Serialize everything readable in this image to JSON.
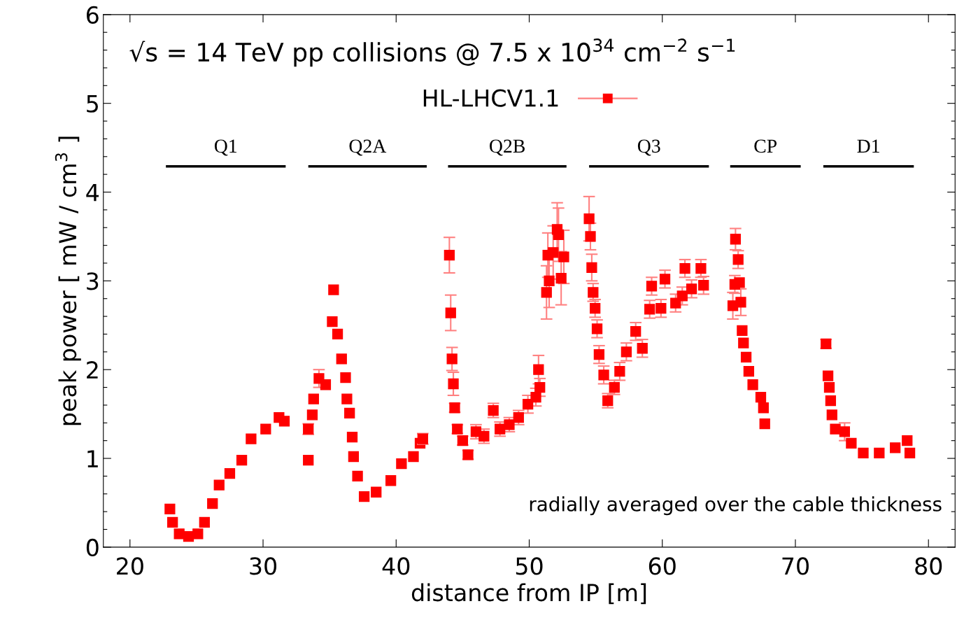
{
  "chart_data": {
    "type": "scatter",
    "xlabel": "distance from IP [m]",
    "ylabel": "peak power [ mW / cm$^{3}$ ]",
    "annotations": [
      "√s = 14 TeV pp collisions @ 7.5 x 10$^{34}$ cm$^{−2}$ s$^{−1}$",
      "radially averaged over the cable thickness"
    ],
    "xlim": [
      18,
      82
    ],
    "xticks": [
      20,
      30,
      40,
      50,
      60,
      70,
      80
    ],
    "ylim": [
      0,
      6
    ],
    "yticks": [
      0,
      {
        "value": 0.2,
        "label": null
      },
      {
        "value": 0.4,
        "label": null
      },
      {
        "value": 0.6,
        "label": null
      },
      {
        "value": 0.8,
        "label": null
      },
      1,
      {
        "value": 1.2,
        "label": null
      },
      {
        "value": 1.4,
        "label": null
      },
      {
        "value": 1.6,
        "label": null
      },
      {
        "value": 1.8,
        "label": null
      },
      2,
      {
        "value": 2.2,
        "label": null
      },
      {
        "value": 2.4,
        "label": null
      },
      {
        "value": 2.6,
        "label": null
      },
      {
        "value": 2.8,
        "label": null
      },
      3,
      {
        "value": 3.2,
        "label": null
      },
      {
        "value": 3.4,
        "label": null
      },
      {
        "value": 3.6,
        "label": null
      },
      {
        "value": 3.8,
        "label": null
      },
      4,
      {
        "value": 4.2,
        "label": null
      },
      {
        "value": 4.4,
        "label": null
      },
      {
        "value": 4.6,
        "label": null
      },
      {
        "value": 4.8,
        "label": null
      },
      5,
      {
        "value": 5.2,
        "label": null
      },
      {
        "value": 5.4,
        "label": null
      },
      {
        "value": 5.6,
        "label": null
      },
      {
        "value": 5.8,
        "label": null
      },
      6
    ],
    "grid": false,
    "legend": "top",
    "marker": "square",
    "series": [
      {
        "type": "line",
        "marker": "none",
        "name": "Q1",
        "color": "#000000",
        "x": [
          22.7,
          31.7
        ],
        "values": [
          4.29,
          4.29
        ]
      },
      {
        "type": "line",
        "marker": "none",
        "name": "Q2A",
        "color": "#000000",
        "x": [
          33.4,
          42.3
        ],
        "values": [
          4.29,
          4.29
        ]
      },
      {
        "type": "line",
        "marker": "none",
        "name": "Q2B",
        "color": "#000000",
        "x": [
          43.9,
          52.8
        ],
        "values": [
          4.29,
          4.29
        ]
      },
      {
        "type": "line",
        "marker": "none",
        "name": "Q3",
        "color": "#000000",
        "x": [
          54.5,
          63.5
        ],
        "values": [
          4.29,
          4.29
        ]
      },
      {
        "type": "line",
        "marker": "none",
        "name": "CP",
        "color": "#000000",
        "x": [
          65.1,
          70.4
        ],
        "values": [
          4.29,
          4.29
        ]
      },
      {
        "type": "line",
        "marker": "none",
        "name": "D1",
        "color": "#000000",
        "x": [
          72.1,
          78.9
        ],
        "values": [
          4.29,
          4.29
        ]
      },
      {
        "name": "HL-LHCV1.1",
        "color": "#ff0000",
        "x": [
          23.0,
          23.2,
          23.7,
          24.4,
          25.1,
          25.6,
          26.2,
          26.7,
          27.5,
          28.4,
          29.1,
          30.2,
          31.2,
          31.6,
          33.4,
          33.4,
          33.7,
          33.8,
          34.2,
          34.7,
          35.3,
          35.2,
          35.6,
          35.9,
          36.2,
          36.3,
          36.5,
          36.7,
          36.8,
          37.1,
          37.6,
          38.5,
          39.6,
          40.4,
          41.3,
          41.8,
          42.0,
          44.0,
          44.1,
          44.2,
          44.3,
          44.4,
          44.6,
          45.0,
          45.4,
          46.0,
          46.6,
          47.3,
          47.8,
          48.5,
          49.2,
          49.9,
          50.5,
          50.8,
          50.7,
          51.3,
          51.4,
          51.5,
          51.8,
          52.1,
          52.2,
          52.4,
          52.6,
          54.5,
          54.6,
          54.7,
          54.8,
          54.95,
          55.1,
          55.25,
          55.6,
          55.9,
          56.4,
          56.8,
          57.3,
          58.0,
          58.5,
          59.05,
          59.2,
          59.9,
          60.2,
          61.0,
          61.5,
          61.7,
          62.2,
          62.9,
          63.1,
          65.5,
          65.7,
          65.45,
          65.8,
          65.3,
          65.9,
          66.0,
          66.1,
          66.3,
          66.5,
          66.8,
          67.4,
          67.6,
          67.7,
          72.3,
          72.45,
          72.55,
          72.65,
          72.75,
          73.0,
          73.7,
          74.2,
          75.1,
          76.3,
          77.5,
          78.4,
          78.6
        ],
        "values": [
          0.43,
          0.28,
          0.15,
          0.12,
          0.15,
          0.28,
          0.49,
          0.7,
          0.83,
          0.98,
          1.22,
          1.33,
          1.46,
          1.42,
          0.98,
          1.33,
          1.49,
          1.67,
          1.9,
          1.83,
          2.9,
          2.54,
          2.4,
          2.12,
          1.91,
          1.67,
          1.51,
          1.24,
          1.02,
          0.8,
          0.57,
          0.62,
          0.75,
          0.94,
          1.02,
          1.17,
          1.22,
          3.29,
          2.64,
          2.12,
          1.84,
          1.57,
          1.33,
          1.2,
          1.04,
          1.3,
          1.25,
          1.54,
          1.33,
          1.38,
          1.46,
          1.61,
          1.69,
          1.8,
          2.0,
          2.87,
          3.29,
          3.0,
          3.32,
          3.58,
          3.52,
          3.03,
          3.27,
          3.7,
          3.5,
          3.15,
          2.87,
          2.69,
          2.46,
          2.17,
          1.94,
          1.65,
          1.8,
          1.98,
          2.2,
          2.43,
          2.24,
          2.68,
          2.94,
          2.69,
          3.02,
          2.75,
          2.83,
          3.14,
          2.91,
          3.14,
          2.95,
          3.47,
          3.24,
          2.96,
          2.98,
          2.72,
          2.76,
          2.44,
          2.3,
          2.14,
          1.98,
          1.83,
          1.69,
          1.57,
          1.39,
          2.29,
          1.93,
          1.8,
          1.65,
          1.49,
          1.33,
          1.3,
          1.17,
          1.06,
          1.06,
          1.12,
          1.2,
          1.06
        ],
        "errors": [
          null,
          null,
          null,
          null,
          null,
          null,
          null,
          null,
          null,
          null,
          null,
          null,
          null,
          null,
          null,
          0.06,
          null,
          null,
          0.1,
          null,
          null,
          null,
          null,
          null,
          null,
          null,
          null,
          null,
          null,
          null,
          null,
          null,
          null,
          null,
          null,
          null,
          0.06,
          0.2,
          0.2,
          0.13,
          0.13,
          0.05,
          0.05,
          0.05,
          0.05,
          0.08,
          0.08,
          0.08,
          0.08,
          0.08,
          0.08,
          0.1,
          0.1,
          0.1,
          0.16,
          0.3,
          0.25,
          0.3,
          0.3,
          0.3,
          0.3,
          0.3,
          0.3,
          0.25,
          0.15,
          0.15,
          0.1,
          0.1,
          0.1,
          0.1,
          0.1,
          0.08,
          0.08,
          0.1,
          0.1,
          0.1,
          0.1,
          0.1,
          0.1,
          0.1,
          0.1,
          0.1,
          0.1,
          0.1,
          0.1,
          0.1,
          0.1,
          0.12,
          0.1,
          0.1,
          null,
          0.15,
          0.15,
          null,
          null,
          null,
          null,
          null,
          null,
          null,
          null,
          0.05,
          null,
          null,
          null,
          null,
          null,
          0.1,
          null,
          null,
          null,
          null,
          null,
          null
        ]
      }
    ]
  }
}
